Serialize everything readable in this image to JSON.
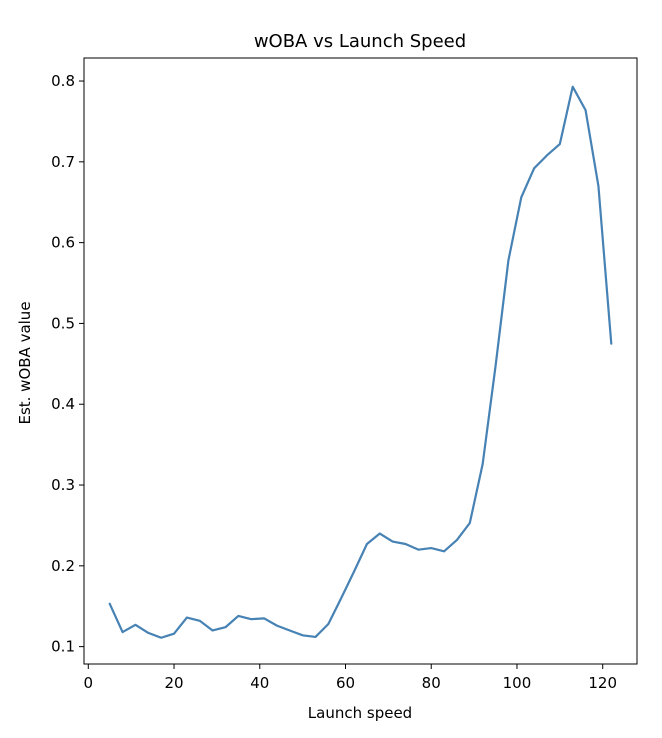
{
  "chart_data": {
    "type": "line",
    "title": "wOBA vs Launch Speed",
    "xlabel": "Launch speed",
    "ylabel": "Est. wOBA value",
    "xlim": [
      -1,
      128
    ],
    "ylim": [
      0.0785,
      0.8285
    ],
    "xticks": [
      0,
      20,
      40,
      60,
      80,
      100,
      120
    ],
    "yticks": [
      0.1,
      0.2,
      0.3,
      0.4,
      0.5,
      0.6,
      0.7,
      0.8
    ],
    "grid": false,
    "line_color": "#4682b4",
    "series": [
      {
        "x": [
          5,
          8,
          11,
          14,
          17,
          20,
          23,
          26,
          29,
          32,
          35,
          38,
          41,
          44,
          47,
          50,
          53,
          56,
          59,
          62,
          65,
          68,
          71,
          74,
          77,
          80,
          83,
          86,
          89,
          92,
          95,
          98,
          101,
          104,
          107,
          110,
          113,
          116,
          119,
          122
        ],
        "values": [
          0.153,
          0.118,
          0.127,
          0.117,
          0.111,
          0.116,
          0.136,
          0.132,
          0.12,
          0.124,
          0.138,
          0.134,
          0.135,
          0.126,
          0.12,
          0.114,
          0.112,
          0.128,
          0.16,
          0.193,
          0.227,
          0.24,
          0.23,
          0.227,
          0.22,
          0.222,
          0.218,
          0.232,
          0.253,
          0.326,
          0.447,
          0.578,
          0.656,
          0.692,
          0.708,
          0.722,
          0.793,
          0.764,
          0.67,
          0.475
        ]
      }
    ]
  }
}
